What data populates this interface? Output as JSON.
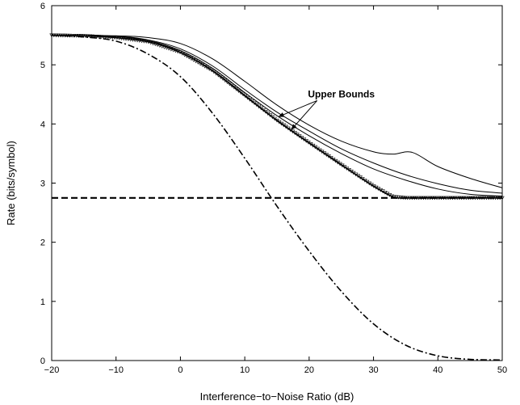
{
  "chart_data": {
    "type": "line",
    "title": "",
    "xlabel": "Interference−to−Noise Ratio (dB)",
    "ylabel": "Rate (bits/symbol)",
    "xlim": [
      -20,
      50
    ],
    "ylim": [
      0,
      6
    ],
    "xticks": [
      -20,
      -10,
      0,
      10,
      20,
      30,
      40,
      50
    ],
    "yticks": [
      0,
      1,
      2,
      3,
      4,
      5,
      6
    ],
    "grid": false,
    "legend": "none",
    "annotation": {
      "text": "Upper Bounds",
      "x": 25,
      "y": 4.45,
      "arrows_to": [
        [
          15.2,
          4.12
        ],
        [
          17.2,
          3.9
        ]
      ]
    },
    "series": [
      {
        "style": "solid",
        "x": [
          -20,
          -10,
          -5,
          0,
          5,
          10,
          15,
          20,
          25,
          30,
          33,
          36,
          40,
          45,
          50
        ],
        "y": [
          5.5,
          5.49,
          5.46,
          5.36,
          5.1,
          4.72,
          4.32,
          3.98,
          3.71,
          3.53,
          3.49,
          3.52,
          3.28,
          3.08,
          2.92
        ]
      },
      {
        "style": "solid",
        "x": [
          -20,
          -10,
          -5,
          0,
          5,
          10,
          15,
          20,
          25,
          30,
          35,
          40,
          45,
          50
        ],
        "y": [
          5.5,
          5.48,
          5.42,
          5.27,
          4.98,
          4.58,
          4.2,
          3.88,
          3.58,
          3.34,
          3.14,
          2.99,
          2.88,
          2.83
        ]
      },
      {
        "style": "solid",
        "x": [
          -20,
          -10,
          -5,
          0,
          5,
          10,
          15,
          20,
          25,
          30,
          35,
          40,
          45,
          50
        ],
        "y": [
          5.5,
          5.48,
          5.41,
          5.24,
          4.94,
          4.53,
          4.14,
          3.8,
          3.5,
          3.24,
          3.05,
          2.9,
          2.81,
          2.78
        ]
      },
      {
        "style": "solid-triangle-markers",
        "x": [
          -20,
          -15,
          -10,
          -5,
          0,
          5,
          10,
          15,
          20,
          25,
          30,
          33,
          35,
          40,
          45,
          50
        ],
        "y": [
          5.5,
          5.49,
          5.46,
          5.39,
          5.21,
          4.9,
          4.48,
          4.06,
          3.68,
          3.31,
          2.95,
          2.77,
          2.75,
          2.75,
          2.75,
          2.75
        ]
      },
      {
        "style": "dashed",
        "x": [
          -20,
          50
        ],
        "y": [
          2.75,
          2.75
        ]
      },
      {
        "style": "dash-dot",
        "x": [
          -20,
          -15,
          -10,
          -5,
          0,
          5,
          10,
          15,
          20,
          25,
          30,
          35,
          40,
          45,
          50
        ],
        "y": [
          5.5,
          5.47,
          5.4,
          5.18,
          4.8,
          4.18,
          3.42,
          2.61,
          1.85,
          1.17,
          0.62,
          0.26,
          0.08,
          0.02,
          0.01
        ]
      }
    ]
  }
}
